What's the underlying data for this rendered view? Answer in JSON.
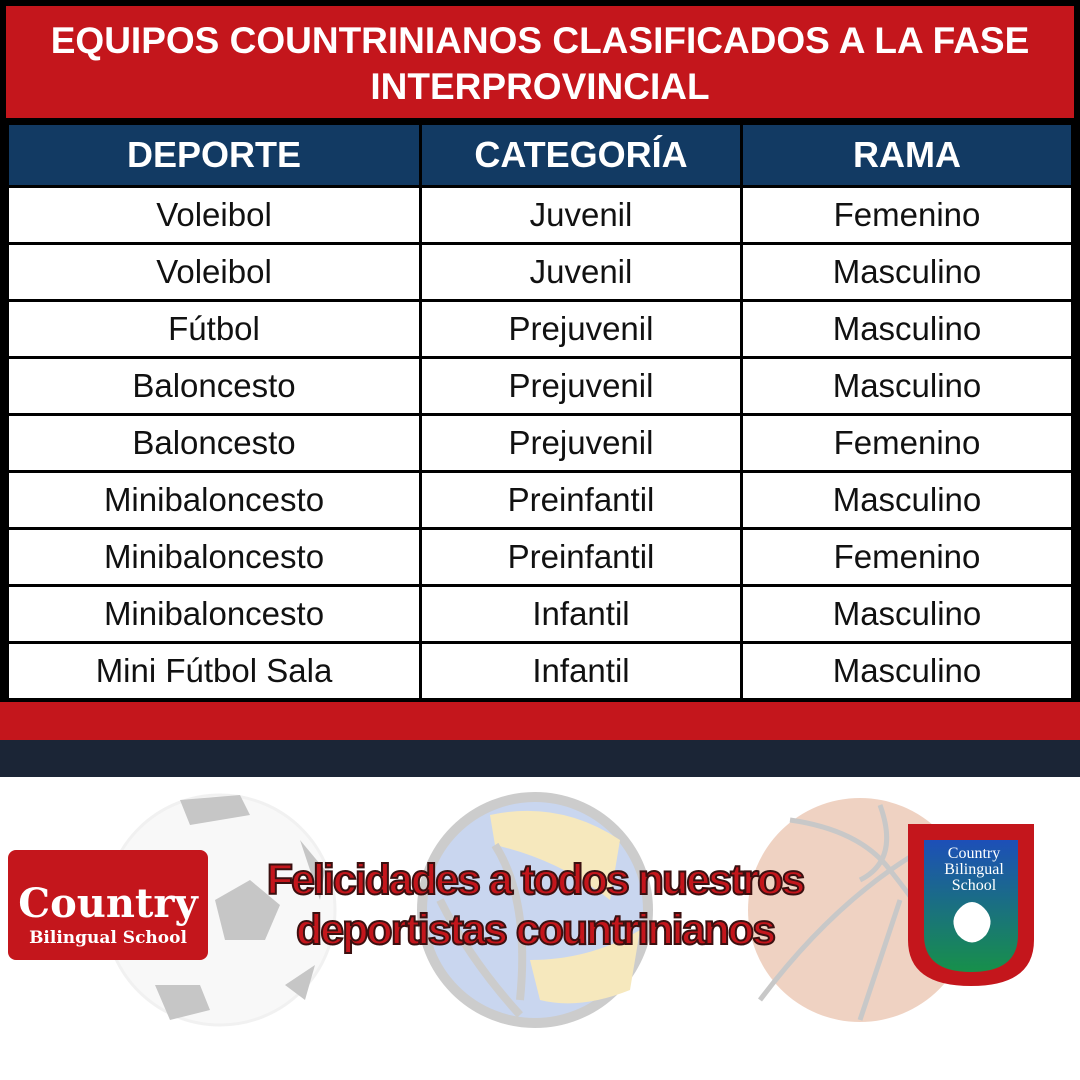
{
  "title": "EQUIPOS COUNTRINIANOS CLASIFICADOS A LA FASE INTERPROVINCIAL",
  "table": {
    "headers": [
      "DEPORTE",
      "CATEGORÍA",
      "RAMA"
    ],
    "rows": [
      [
        "Voleibol",
        "Juvenil",
        "Femenino"
      ],
      [
        "Voleibol",
        "Juvenil",
        "Masculino"
      ],
      [
        "Fútbol",
        "Prejuvenil",
        "Masculino"
      ],
      [
        "Baloncesto",
        "Prejuvenil",
        "Masculino"
      ],
      [
        "Baloncesto",
        "Prejuvenil",
        "Femenino"
      ],
      [
        "Minibaloncesto",
        "Preinfantil",
        "Masculino"
      ],
      [
        "Minibaloncesto",
        "Preinfantil",
        "Femenino"
      ],
      [
        "Minibaloncesto",
        "Infantil",
        "Masculino"
      ],
      [
        "Mini Fútbol Sala",
        "Infantil",
        "Masculino"
      ]
    ]
  },
  "slogan": {
    "line1": "Felicidades a todos nuestros",
    "line2": "deportistas countrinianos"
  },
  "logo_left": {
    "line1": "Country",
    "line2": "Bilingual School"
  },
  "logo_right": {
    "line1": "Country",
    "line2": "Bilingual",
    "line3": "School"
  },
  "colors": {
    "red": "#c4161c",
    "navy": "#123a63",
    "dark_band": "#1b2536"
  }
}
